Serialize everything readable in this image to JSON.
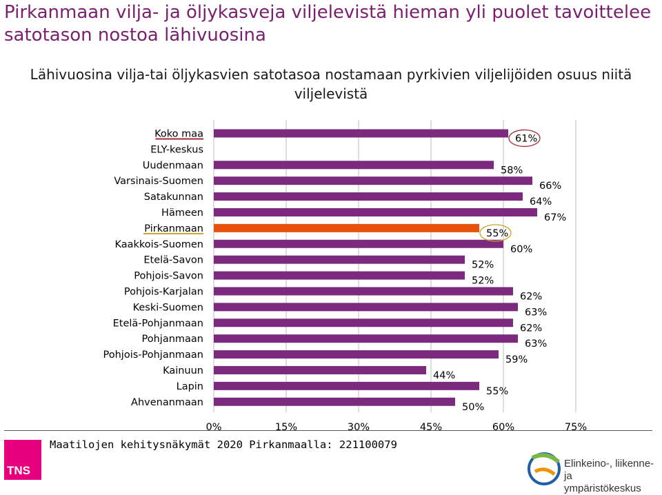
{
  "title": "Pirkanmaan vilja- ja öljykasveja viljelevistä hieman yli puolet tavoittelee satotason nostoa lähivuosina",
  "footer": {
    "text": "Maatilojen kehitysnäkymät 2020 Pirkanmaalla: 221100079",
    "tns_label": "TNS",
    "ely_line1": "Elinkeino-, liikenne- ja",
    "ely_line2": "ympäristökeskus"
  },
  "colors": {
    "bar": "#7b2a7e",
    "highlight": "#e8510b",
    "circle_koko": "#a3273a",
    "circle_pirkanmaa": "#c9a227"
  },
  "chart_data": {
    "type": "bar",
    "orientation": "horizontal",
    "title": "Lähivuosina vilja-tai öljykasvien satotasoa nostamaan pyrkivien viljelijöiden osuus niitä viljelevistä",
    "categories": [
      "Koko maa",
      "ELY-keskus",
      "Uudenmaan",
      "Varsinais-Suomen",
      "Satakunnan",
      "Hämeen",
      "Pirkanmaan",
      "Kaakkois-Suomen",
      "Etelä-Savon",
      "Pohjois-Savon",
      "Pohjois-Karjalan",
      "Keski-Suomen",
      "Etelä-Pohjanmaan",
      "Pohjanmaan",
      "Pohjois-Pohjanmaan",
      "Kainuun",
      "Lapin",
      "Ahvenanmaan"
    ],
    "values": [
      61,
      null,
      58,
      66,
      64,
      67,
      55,
      60,
      52,
      52,
      62,
      63,
      62,
      63,
      59,
      44,
      55,
      50
    ],
    "value_labels": [
      "61%",
      "",
      "58%",
      "66%",
      "64%",
      "67%",
      "55%",
      "60%",
      "52%",
      "52%",
      "62%",
      "63%",
      "62%",
      "63%",
      "59%",
      "44%",
      "55%",
      "50%"
    ],
    "highlight_category": "Pirkanmaan",
    "xlim": [
      0,
      75
    ],
    "xticks": [
      0,
      15,
      30,
      45,
      60,
      75
    ],
    "xtick_labels": [
      "0%",
      "15%",
      "30%",
      "45%",
      "60%",
      "75%"
    ],
    "grid": true,
    "legend": "none"
  }
}
